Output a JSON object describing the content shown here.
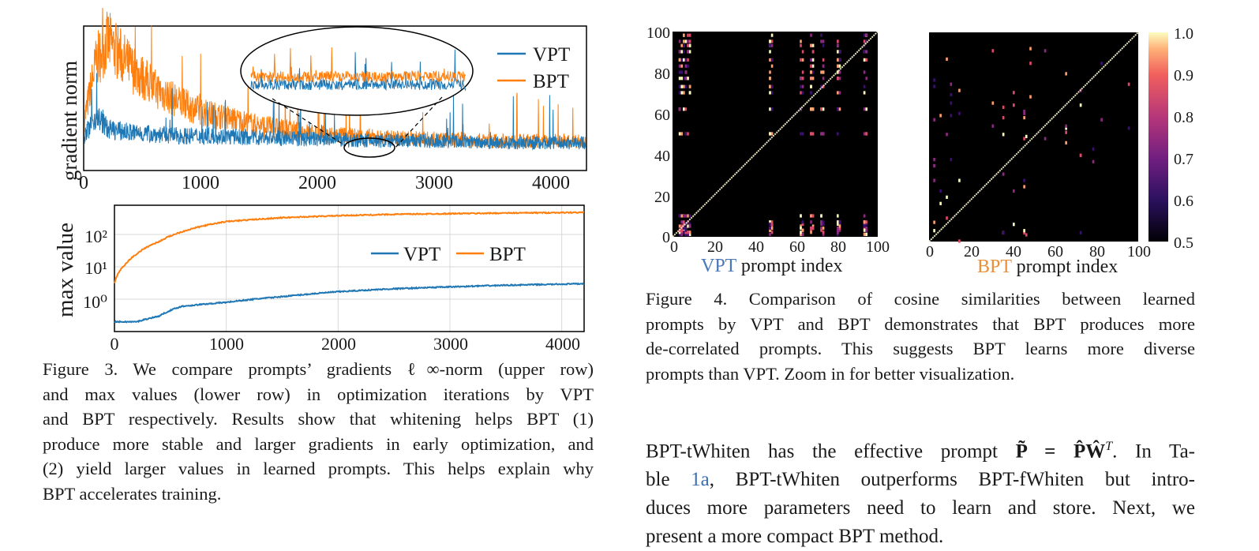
{
  "figure3": {
    "top_chart": {
      "ylabel": "gradient norm",
      "xticks": [
        "0",
        "1000",
        "2000",
        "3000",
        "4000"
      ],
      "legend": [
        "VPT",
        "BPT"
      ]
    },
    "bottom_chart": {
      "ylabel": "max value",
      "yticks": [
        "10²",
        "10¹",
        "10⁰"
      ],
      "xticks": [
        "0",
        "1000",
        "2000",
        "3000",
        "4000"
      ],
      "legend": [
        "VPT",
        "BPT"
      ]
    },
    "caption_lines": [
      "Figure 3. We compare prompts’ gradients ℓ∞-norm (upper row)",
      "and max values (lower row) in optimization iterations by VPT",
      "and BPT respectively. Results show that whitening helps BPT (1)",
      "produce more stable and larger gradients in early optimization, and",
      "(2) yield larger values in learned prompts. This helps explain why",
      "BPT accelerates training."
    ]
  },
  "figure4": {
    "left_yticks": [
      "100",
      "80",
      "60",
      "40",
      "20",
      "0"
    ],
    "xticks": [
      "0",
      "20",
      "40",
      "60",
      "80",
      "100"
    ],
    "left_xlabel_method": "VPT",
    "right_xlabel_method": "BPT",
    "xlabel_suffix": "prompt index",
    "colorbar_ticks": [
      "1.0",
      "0.9",
      "0.8",
      "0.7",
      "0.6",
      "0.5"
    ],
    "caption_lines": [
      "Figure 4.  Comparison of cosine similarities between learned",
      "prompts by VPT and BPT demonstrates that BPT produces more",
      "de-correlated prompts.  This suggests BPT learns more diverse",
      "prompts than VPT. Zoom in for better visualization."
    ]
  },
  "body": {
    "line1_a": "BPT-tWhiten has the effective prompt ",
    "line1_math": "P̃ = P̂Ŵ",
    "line1_sup": "T",
    "line1_b": ". In Ta-",
    "line2_a": "ble ",
    "line2_link": "1a",
    "line2_b": ", BPT-tWhiten outperforms BPT-fWhiten but intro-",
    "line3": "duces more parameters need to learn and store.  Next, we",
    "line4": "present a more compact BPT method."
  },
  "chart_data": [
    {
      "type": "line",
      "ylabel": "gradient norm",
      "xlim": [
        0,
        4250
      ],
      "series": [
        {
          "name": "VPT",
          "color": "#1f77b4",
          "x": [
            0,
            100,
            200,
            400,
            600,
            800,
            1000,
            1500,
            2000,
            2500,
            3000,
            3500,
            4000,
            4250
          ],
          "values": [
            1.0,
            1.6,
            1.2,
            1.1,
            1.05,
            1.0,
            1.0,
            0.95,
            0.9,
            0.85,
            0.85,
            0.8,
            0.8,
            0.8
          ]
        },
        {
          "name": "BPT",
          "color": "#ff7f0e",
          "x": [
            0,
            100,
            200,
            400,
            600,
            800,
            1000,
            1500,
            2000,
            2500,
            3000,
            3500,
            4000,
            4250
          ],
          "values": [
            1.5,
            3.2,
            3.8,
            3.0,
            2.4,
            2.0,
            1.7,
            1.3,
            1.05,
            0.95,
            0.9,
            0.85,
            0.85,
            0.85
          ]
        }
      ]
    },
    {
      "type": "line",
      "ylabel": "max value",
      "yscale": "log",
      "xlim": [
        0,
        4200
      ],
      "ylim": [
        0.1,
        800
      ],
      "series": [
        {
          "name": "VPT",
          "color": "#1f77b4",
          "x": [
            0,
            200,
            400,
            600,
            1000,
            1500,
            2000,
            2500,
            3000,
            3500,
            4200
          ],
          "values": [
            0.2,
            0.2,
            0.3,
            0.6,
            0.8,
            1.2,
            1.7,
            2.1,
            2.4,
            2.7,
            3.0
          ]
        },
        {
          "name": "BPT",
          "color": "#ff7f0e",
          "x": [
            0,
            30,
            100,
            200,
            400,
            600,
            1000,
            1500,
            2000,
            2500,
            3000,
            3500,
            4200
          ],
          "values": [
            3,
            6,
            12,
            25,
            60,
            120,
            250,
            330,
            380,
            420,
            440,
            460,
            480
          ]
        }
      ]
    },
    {
      "type": "heatmap",
      "title": "VPT",
      "xlabel": "VPT prompt index",
      "colorbar_range": [
        0.5,
        1.0
      ]
    },
    {
      "type": "heatmap",
      "title": "BPT",
      "xlabel": "BPT prompt index",
      "colorbar_range": [
        0.5,
        1.0
      ]
    }
  ],
  "colors": {
    "vpt": "#1f77b4",
    "bpt": "#ff7f0e",
    "vpt_text": "#4a78b8",
    "bpt_text": "#e8903a"
  }
}
